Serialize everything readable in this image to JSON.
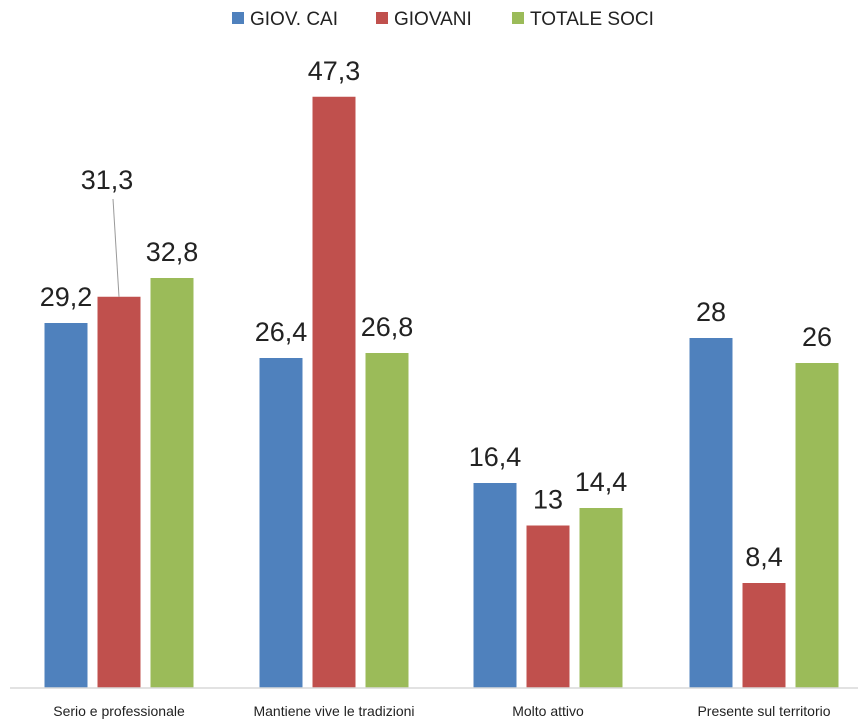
{
  "chart_data": {
    "type": "bar",
    "categories": [
      "Serio e professionale",
      "Mantiene vive le tradizioni",
      "Molto attivo",
      "Presente sul territorio"
    ],
    "series": [
      {
        "name": "GIOV. CAI",
        "color": "#4f81bd",
        "values": [
          29.2,
          26.4,
          16.4,
          28
        ]
      },
      {
        "name": "GIOVANI",
        "color": "#c0504d",
        "values": [
          31.3,
          47.3,
          13,
          8.4
        ]
      },
      {
        "name": "TOTALE SOCI",
        "color": "#9bbb59",
        "values": [
          32.8,
          26.8,
          14.4,
          26
        ]
      }
    ],
    "value_labels": [
      [
        "29,2",
        "26,4",
        "16,4",
        "28"
      ],
      [
        "31,3",
        "47,3",
        "13",
        "8,4"
      ],
      [
        "32,8",
        "26,8",
        "14,4",
        "26"
      ]
    ],
    "ylim": [
      0,
      51
    ],
    "legend_position": "top-center",
    "grid": false
  }
}
